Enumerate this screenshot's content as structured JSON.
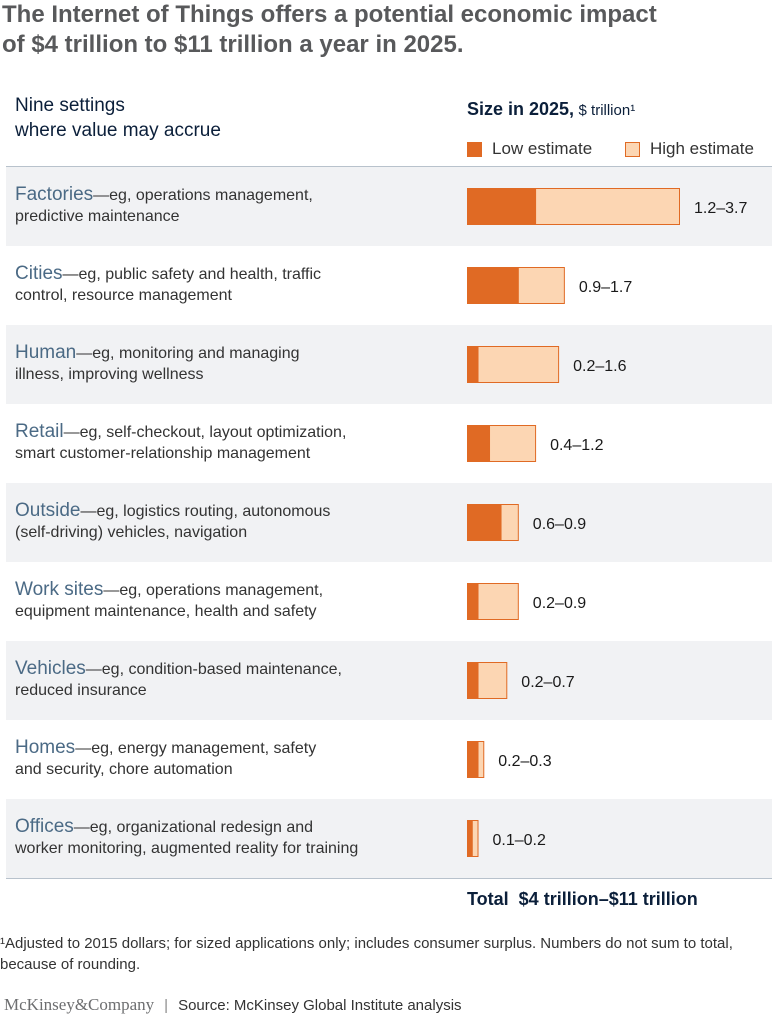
{
  "title_lines": [
    "The Internet of Things offers a potential economic impact",
    "of $4 trillion to $11 trillion a year in 2025."
  ],
  "left_header": [
    "Nine settings",
    "where value may accrue"
  ],
  "right_header": {
    "bold": "Size in 2025,",
    "unit": "$ trillion¹"
  },
  "legend": {
    "low": "Low estimate",
    "high": "High estimate"
  },
  "colors": {
    "low": "#e06a24",
    "high": "#fcd6b3",
    "border": "#e06a24"
  },
  "chart_data": {
    "type": "bar",
    "orientation": "horizontal-range",
    "title": "The Internet of Things offers a potential economic impact of $4 trillion to $11 trillion a year in 2025.",
    "ylabel": "Size in 2025, $ trillion¹",
    "categories": [
      "Factories",
      "Cities",
      "Human",
      "Retail",
      "Outside",
      "Work sites",
      "Vehicles",
      "Homes",
      "Offices"
    ],
    "descriptions": [
      [
        "—eg, operations management,",
        "predictive maintenance"
      ],
      [
        "—eg, public safety and health, traffic",
        "control, resource management"
      ],
      [
        "—eg, monitoring and managing",
        "illness, improving wellness"
      ],
      [
        "—eg, self-checkout, layout optimization,",
        "smart customer-relationship management"
      ],
      [
        "—eg, logistics routing, autonomous",
        "(self-driving) vehicles, navigation"
      ],
      [
        "—eg, operations management,",
        "equipment maintenance, health and safety"
      ],
      [
        "—eg, condition-based maintenance,",
        "reduced insurance"
      ],
      [
        "—eg, energy management, safety",
        "and security, chore automation"
      ],
      [
        "—eg, organizational redesign and",
        "worker monitoring, augmented reality for training"
      ]
    ],
    "series": [
      {
        "name": "Low estimate",
        "values": [
          1.2,
          0.9,
          0.2,
          0.4,
          0.6,
          0.2,
          0.2,
          0.2,
          0.1
        ]
      },
      {
        "name": "High estimate",
        "values": [
          3.7,
          1.7,
          1.6,
          1.2,
          0.9,
          0.9,
          0.7,
          0.3,
          0.2
        ]
      }
    ],
    "value_labels": [
      "1.2–3.7",
      "0.9–1.7",
      "0.2–1.6",
      "0.4–1.2",
      "0.6–0.9",
      "0.2–0.9",
      "0.2–0.7",
      "0.2–0.3",
      "0.1–0.2"
    ],
    "xlim": [
      0,
      3.7
    ],
    "grid": false,
    "legend_position": "top-right"
  },
  "total": {
    "label": "Total",
    "value": "$4 trillion–$11 trillion"
  },
  "footnote": "¹Adjusted to 2015 dollars; for sized applications only; includes consumer surplus. Numbers do not sum to total, because of rounding.",
  "source": {
    "logo": "McKinsey&Company",
    "separator": "|",
    "text": "Source: McKinsey Global Institute analysis"
  }
}
